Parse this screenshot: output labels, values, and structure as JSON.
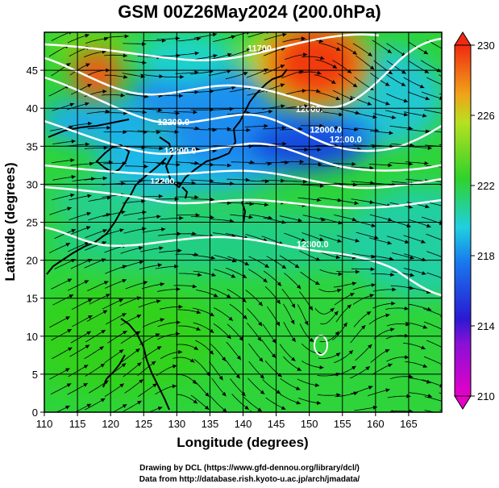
{
  "title": "GSM 00Z26May2024 (200.0hPa)",
  "x_axis": {
    "label": "Longitude (degrees)",
    "range": [
      110,
      170
    ],
    "ticks": [
      "110",
      "115",
      "120",
      "125",
      "130",
      "135",
      "140",
      "145",
      "150",
      "155",
      "160",
      "165"
    ],
    "tick_values": [
      110,
      115,
      120,
      125,
      130,
      135,
      140,
      145,
      150,
      155,
      160,
      165
    ]
  },
  "y_axis": {
    "label": "Latitude (degrees)",
    "range": [
      0,
      50
    ],
    "ticks": [
      "0",
      "5",
      "10",
      "15",
      "20",
      "25",
      "30",
      "35",
      "40",
      "45"
    ],
    "tick_values": [
      0,
      5,
      10,
      15,
      20,
      25,
      30,
      35,
      40,
      45
    ]
  },
  "colorbar": {
    "range": [
      210,
      230
    ],
    "tick_labels": [
      "210",
      "214",
      "218",
      "222",
      "226",
      "230"
    ],
    "tick_values": [
      210,
      214,
      218,
      222,
      226,
      230
    ],
    "colors": [
      "#e600c8",
      "#2a1ad2",
      "#1fa8ee",
      "#2fd22a",
      "#f0e11c",
      "#f02a10"
    ]
  },
  "contour_labels": [
    {
      "text": "11700",
      "lon": 142.5,
      "lat": 47.5
    },
    {
      "text": "12000.",
      "lon": 150.0,
      "lat": 39.5
    },
    {
      "text": "12000.0",
      "lon": 152.5,
      "lat": 36.8
    },
    {
      "text": "12100.0",
      "lon": 155.5,
      "lat": 35.5
    },
    {
      "text": "12200.0",
      "lon": 129.5,
      "lat": 37.8
    },
    {
      "text": "12200.0",
      "lon": 130.5,
      "lat": 34.0
    },
    {
      "text": "12200.",
      "lon": 128.0,
      "lat": 30.0
    },
    {
      "text": "12300.0",
      "lon": 150.5,
      "lat": 21.7
    }
  ],
  "credits": {
    "line1": "Drawing by DCL (https://www.gfd-dennou.org/library/dcl/)",
    "line2": "Data from http://database.rish.kyoto-u.ac.jp/arch/jmadata/"
  },
  "colors": {
    "contour": "#ffffff",
    "streamline": "#000000",
    "grid": "#000000"
  }
}
